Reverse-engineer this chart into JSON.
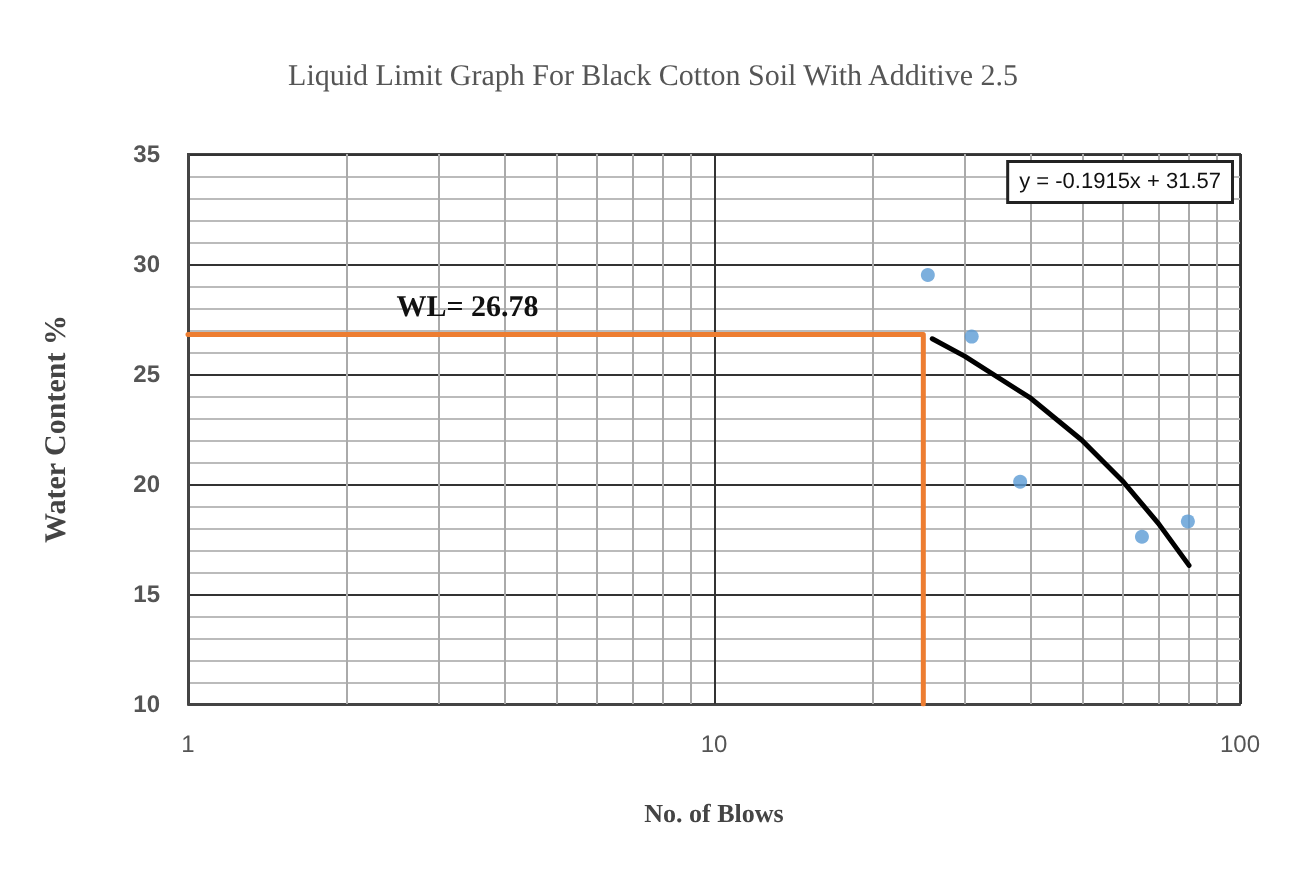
{
  "chart_data": {
    "type": "scatter",
    "title": "Liquid Limit Graph For Black Cotton Soil With Additive 2.5",
    "xlabel": "No. of Blows",
    "ylabel": "Water Content %",
    "log": "x",
    "xlim": [
      1,
      100
    ],
    "xticks": [
      1,
      10,
      100
    ],
    "ylim": [
      10,
      35
    ],
    "yticks": [
      10,
      15,
      20,
      25,
      30,
      35
    ],
    "grid": true,
    "series": [
      {
        "marker": "circle",
        "color": "#5b9bd5",
        "x": [
          25.5,
          30.9,
          38.2,
          65.1,
          79.6
        ],
        "values": [
          29.5,
          26.7,
          20.1,
          17.6,
          18.3
        ]
      },
      {
        "type": "line",
        "marker": "none",
        "color": "#000000",
        "x": [
          26,
          30,
          40,
          50,
          60,
          70,
          80
        ],
        "values": [
          26.6,
          25.8,
          23.9,
          22.0,
          20.1,
          18.2,
          16.3
        ]
      },
      {
        "type": "line",
        "marker": "none",
        "color": "#ed7d31",
        "x": [
          1,
          25,
          25
        ],
        "values": [
          26.8,
          26.8,
          10
        ]
      }
    ],
    "annotations": [
      {
        "text": "WL= 26.78",
        "x": 3.4,
        "y": 26.78
      },
      "y = -0.1915x + 31.57"
    ]
  }
}
